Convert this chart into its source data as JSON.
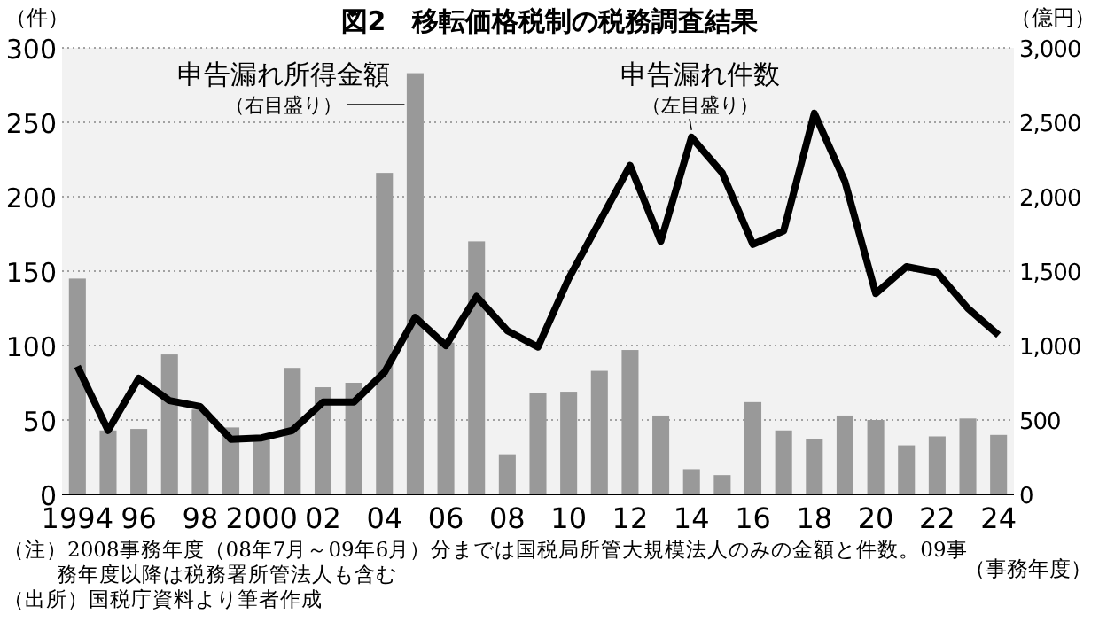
{
  "chart_data": {
    "type": "bar",
    "title": "図2　移転価格税制の税務調査結果",
    "categories": [
      "1994",
      null,
      "96",
      null,
      "98",
      null,
      "2000",
      null,
      "02",
      null,
      "04",
      null,
      "06",
      null,
      "08",
      null,
      "10",
      null,
      "12",
      null,
      "14",
      null,
      "16",
      null,
      "18",
      null,
      "20",
      null,
      "22",
      null,
      "24"
    ],
    "series": [
      {
        "name": "申告漏れ所得金額",
        "axis": "y2",
        "color": "#999999",
        "values": [
          1450,
          430,
          440,
          940,
          570,
          450,
          390,
          850,
          720,
          750,
          2160,
          2830,
          1020,
          1700,
          270,
          680,
          690,
          830,
          970,
          530,
          170,
          130,
          620,
          430,
          370,
          530,
          500,
          330,
          390,
          510,
          400
        ]
      },
      {
        "name": "申告漏れ件数",
        "type": "line",
        "color": "#000000",
        "values": [
          86,
          43,
          78,
          63,
          59,
          37,
          38,
          43,
          62,
          62,
          82,
          119,
          100,
          133,
          110,
          99,
          145,
          183,
          221,
          170,
          240,
          216,
          168,
          177,
          256,
          210,
          135,
          153,
          149,
          125,
          107
        ]
      }
    ],
    "ylim": [
      0,
      300
    ],
    "yticks": [
      0,
      50,
      100,
      150,
      200,
      250,
      300
    ],
    "y2lim": [
      0,
      3000
    ],
    "y2ticks": [
      {
        "value": 0,
        "label": "0"
      },
      {
        "value": 500,
        "label": "500"
      },
      {
        "value": 1000,
        "label": "1,000"
      },
      {
        "value": 1500,
        "label": "1,500"
      },
      {
        "value": 2000,
        "label": "2,000"
      },
      {
        "value": 2500,
        "label": "2,500"
      },
      {
        "value": 3000,
        "label": "3,000"
      }
    ],
    "ylabel": "（件）",
    "y2label": "（億円）",
    "xlabel": "（事務年度）",
    "grid": "y",
    "marker": "none",
    "line_style": "solid",
    "annotations": [
      "（右目盛り）",
      {
        "text": "（左目盛り）",
        "x": "14",
        "y": 240
      },
      "（注）2008事務年度（08年7月～09年6月）分までは国税局所管大規模法人のみの金額と件数。09事務年度以降は税務署所管法人も含む",
      "（出所）国税庁資料より筆者作成"
    ]
  }
}
